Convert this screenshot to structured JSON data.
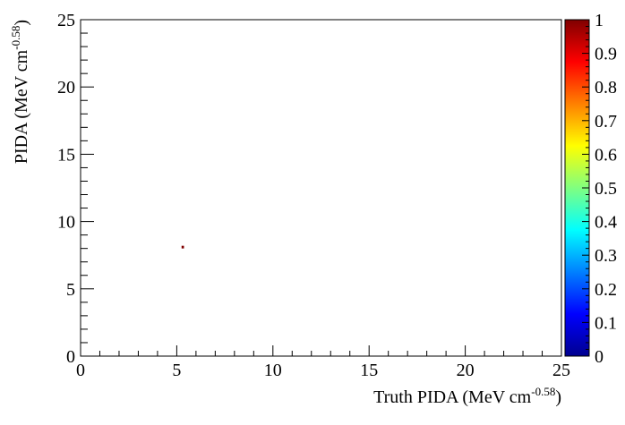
{
  "chart_data": {
    "type": "heatmap",
    "title": "",
    "xlabel": {
      "text": "Truth PIDA (MeV cm",
      "sup": "-0.58",
      "tail": ")"
    },
    "ylabel": {
      "text": "PIDA (MeV cm",
      "sup": "-0.58",
      "tail": ")"
    },
    "xlim": [
      0,
      25
    ],
    "ylim": [
      0,
      25
    ],
    "x_ticks": [
      "0",
      "5",
      "10",
      "15",
      "20",
      "25"
    ],
    "y_ticks": [
      "0",
      "5",
      "10",
      "15",
      "20",
      "25"
    ],
    "colorbar": {
      "range": [
        0,
        1
      ],
      "ticks": [
        "0",
        "0.1",
        "0.2",
        "0.3",
        "0.4",
        "0.5",
        "0.6",
        "0.7",
        "0.8",
        "0.9",
        "1"
      ],
      "colors": [
        "#00008f",
        "#0000ff",
        "#0080ff",
        "#00ffff",
        "#80ff80",
        "#ffff00",
        "#ff8000",
        "#ff0000",
        "#800000"
      ]
    },
    "bins": [
      {
        "x0": 5.25,
        "x1": 5.375,
        "y0": 8.0,
        "y1": 8.2,
        "value": 1
      }
    ],
    "grid": false
  }
}
